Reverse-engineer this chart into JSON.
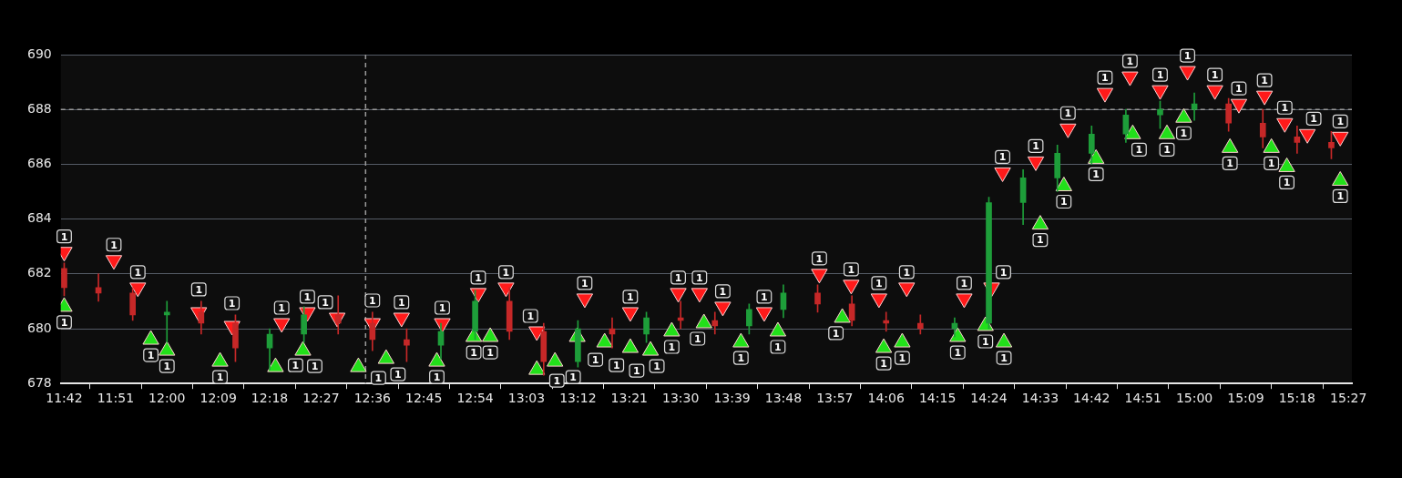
{
  "chart_data": {
    "type": "candlestick",
    "x": [
      11.7,
      11.8,
      11.9,
      12.0,
      12.1,
      12.2,
      12.3,
      12.4,
      12.5,
      12.6,
      12.7,
      12.8,
      12.9,
      13.0,
      13.1,
      13.2,
      13.3,
      13.4,
      13.5,
      13.6,
      13.7,
      13.8,
      13.9,
      14.0,
      14.1,
      14.2,
      14.3,
      14.4,
      14.5,
      14.6,
      14.7,
      14.8,
      14.9,
      15.0,
      15.1,
      15.2,
      15.3,
      15.4
    ],
    "ohlc": [
      [
        682.2,
        682.4,
        681.2,
        681.5
      ],
      [
        681.5,
        682,
        681,
        681.3
      ],
      [
        681.3,
        681.5,
        680.3,
        680.5
      ],
      [
        680.5,
        681,
        679.5,
        680.6
      ],
      [
        680.6,
        681,
        679.8,
        680.2
      ],
      [
        680.2,
        680.5,
        678.8,
        679.3
      ],
      [
        679.3,
        680,
        678.5,
        679.8
      ],
      [
        679.8,
        680.8,
        679.5,
        680.5
      ],
      [
        680.5,
        681.2,
        679.8,
        680.2
      ],
      [
        680.2,
        680.6,
        679.2,
        679.6
      ],
      [
        679.6,
        680,
        678.8,
        679.4
      ],
      [
        679.4,
        680.2,
        678.9,
        679.9
      ],
      [
        679.9,
        681.4,
        679.6,
        681
      ],
      [
        681,
        681.5,
        679.6,
        679.9
      ],
      [
        679.9,
        680.2,
        678.3,
        678.8
      ],
      [
        678.8,
        680.3,
        678.6,
        680
      ],
      [
        680,
        680.4,
        679.3,
        679.8
      ],
      [
        679.8,
        680.6,
        679.5,
        680.4
      ],
      [
        680.4,
        681,
        680,
        680.3
      ],
      [
        680.3,
        680.6,
        679.8,
        680.1
      ],
      [
        680.1,
        680.9,
        679.8,
        680.7
      ],
      [
        680.7,
        681.6,
        680.4,
        681.3
      ],
      [
        681.3,
        681.6,
        680.6,
        680.9
      ],
      [
        680.9,
        681.2,
        680.1,
        680.3
      ],
      [
        680.3,
        680.6,
        679.9,
        680.2
      ],
      [
        680.2,
        680.5,
        679.8,
        680
      ],
      [
        680,
        680.4,
        679.7,
        680.2
      ],
      [
        680.2,
        684.8,
        680,
        684.6
      ],
      [
        684.6,
        685.8,
        683.8,
        685.5
      ],
      [
        685.5,
        686.7,
        685,
        686.4
      ],
      [
        686.4,
        687.4,
        686,
        687.1
      ],
      [
        687.1,
        688,
        686.8,
        687.8
      ],
      [
        687.8,
        688.3,
        687.3,
        688
      ],
      [
        688,
        688.6,
        687.6,
        688.2
      ],
      [
        688.2,
        688.4,
        687.2,
        687.5
      ],
      [
        687.5,
        688,
        686.6,
        687
      ],
      [
        687,
        687.4,
        686.4,
        686.8
      ],
      [
        686.8,
        687.2,
        686.2,
        686.6
      ]
    ],
    "colors": [
      "#c62828",
      "#c62828",
      "#c62828",
      "#1e9e3a",
      "#c62828",
      "#c62828",
      "#1e9e3a",
      "#1e9e3a",
      "#c62828",
      "#c62828",
      "#c62828",
      "#1e9e3a",
      "#1e9e3a",
      "#c62828",
      "#c62828",
      "#1e9e3a",
      "#c62828",
      "#1e9e3a",
      "#c62828",
      "#c62828",
      "#1e9e3a",
      "#1e9e3a",
      "#c62828",
      "#c62828",
      "#c62828",
      "#c62828",
      "#1e9e3a",
      "#1e9e3a",
      "#1e9e3a",
      "#1e9e3a",
      "#1e9e3a",
      "#1e9e3a",
      "#1e9e3a",
      "#1e9e3a",
      "#c62828",
      "#c62828",
      "#c62828",
      "#c62828"
    ],
    "series": [
      {
        "type": "scatter",
        "color": "#ff1a1a",
        "marker": "triangle-down",
        "x": [
          11.7,
          11.845,
          11.915,
          12.093,
          12.19,
          12.335,
          12.41,
          12.497,
          12.6,
          12.685,
          12.804,
          12.909,
          12.99,
          13.08,
          13.22,
          13.353,
          13.493,
          13.555,
          13.623,
          13.744,
          13.905,
          13.998,
          14.079,
          14.16,
          14.328,
          14.408,
          14.44,
          14.537,
          14.631,
          14.739,
          14.812,
          14.9,
          14.98,
          15.06,
          15.13,
          15.205,
          15.264,
          15.33,
          15.426
        ],
        "values": [
          682.8,
          682.5,
          681.5,
          680.6,
          680.1,
          680.2,
          680.6,
          680.4,
          680.2,
          680.4,
          680.2,
          681.3,
          681.5,
          679.9,
          681.1,
          680.6,
          681.3,
          681.3,
          680.8,
          680.6,
          682,
          681.6,
          681.1,
          681.5,
          681.1,
          681.5,
          685.7,
          686.1,
          687.3,
          688.6,
          689.2,
          688.7,
          689.4,
          688.7,
          688.2,
          688.5,
          687.5,
          687.1,
          687
        ]
      },
      {
        "type": "scatter",
        "color": "#22e01a",
        "marker": "triangle",
        "x": [
          11.7,
          11.953,
          12.0,
          12.155,
          12.317,
          12.397,
          12.559,
          12.64,
          12.788,
          12.896,
          12.944,
          13.08,
          13.133,
          13.198,
          13.278,
          13.353,
          13.412,
          13.474,
          13.568,
          13.676,
          13.784,
          13.972,
          14.093,
          14.147,
          14.309,
          14.39,
          14.444,
          14.55,
          14.619,
          14.713,
          14.82,
          14.92,
          14.969,
          15.104,
          15.225,
          15.27,
          15.426
        ],
        "values": [
          680.8,
          679.6,
          679.2,
          678.8,
          678.6,
          679.2,
          678.6,
          678.9,
          678.8,
          679.7,
          679.7,
          678.5,
          678.8,
          679.7,
          679.5,
          679.3,
          679.2,
          679.9,
          680.2,
          679.5,
          679.9,
          680.4,
          679.3,
          679.5,
          679.7,
          680.1,
          679.5,
          683.8,
          685.2,
          686.2,
          687.1,
          687.1,
          687.7,
          686.6,
          686.6,
          685.9,
          685.4
        ]
      }
    ],
    "annotations": [
      {
        "text": "1",
        "x": 11.7,
        "y": 682.8
      },
      {
        "text": "1",
        "x": 11.845,
        "y": 682.5
      },
      {
        "text": "1",
        "x": 11.915,
        "y": 681.5
      },
      {
        "text": "1",
        "x": 12.093,
        "y": 680.6
      },
      {
        "text": "1",
        "x": 12.19,
        "y": 680.1
      },
      {
        "text": "1",
        "x": 12.335,
        "y": 680.2
      },
      {
        "text": "1",
        "x": 12.41,
        "y": 680.6
      },
      {
        "text": "1",
        "x": 12.497,
        "y": 680.4
      },
      {
        "text": "1",
        "x": 12.6,
        "y": 680.2
      },
      {
        "text": "1",
        "x": 12.685,
        "y": 680.4
      },
      {
        "text": "1",
        "x": 12.804,
        "y": 680.2
      },
      {
        "text": "1",
        "x": 12.909,
        "y": 681.3
      },
      {
        "text": "1",
        "x": 12.99,
        "y": 681.5
      },
      {
        "text": "1",
        "x": 13.08,
        "y": 679.9
      },
      {
        "text": "1",
        "x": 13.22,
        "y": 681.1
      },
      {
        "text": "1",
        "x": 13.353,
        "y": 680.6
      },
      {
        "text": "1",
        "x": 13.493,
        "y": 681.3
      },
      {
        "text": "1",
        "x": 13.555,
        "y": 681.3
      },
      {
        "text": "1",
        "x": 13.623,
        "y": 680.8
      },
      {
        "text": "1",
        "x": 13.744,
        "y": 680.6
      },
      {
        "text": "1",
        "x": 13.905,
        "y": 682
      },
      {
        "text": "1",
        "x": 13.998,
        "y": 681.6
      },
      {
        "text": "1",
        "x": 14.079,
        "y": 681.1
      },
      {
        "text": "1",
        "x": 14.16,
        "y": 681.5
      },
      {
        "text": "1",
        "x": 14.328,
        "y": 681.1
      },
      {
        "text": "1",
        "x": 14.408,
        "y": 681.5
      },
      {
        "text": "1",
        "x": 14.44,
        "y": 685.7
      },
      {
        "text": "1",
        "x": 14.537,
        "y": 686.1
      },
      {
        "text": "1",
        "x": 14.631,
        "y": 687.3
      },
      {
        "text": "1",
        "x": 14.739,
        "y": 688.6
      },
      {
        "text": "1",
        "x": 14.812,
        "y": 689.2
      },
      {
        "text": "1",
        "x": 14.9,
        "y": 688.7
      },
      {
        "text": "1",
        "x": 14.98,
        "y": 689.4
      },
      {
        "text": "1",
        "x": 15.06,
        "y": 688.7
      },
      {
        "text": "1",
        "x": 15.13,
        "y": 688.2
      },
      {
        "text": "1",
        "x": 15.205,
        "y": 688.5
      },
      {
        "text": "1",
        "x": 15.264,
        "y": 687.5
      },
      {
        "text": "1",
        "x": 15.33,
        "y": 687.1
      },
      {
        "text": "1",
        "x": 15.426,
        "y": 687
      },
      {
        "text": "1",
        "x": 11.7,
        "y": 680.8
      },
      {
        "text": "1",
        "x": 11.953,
        "y": 679.6
      },
      {
        "text": "1",
        "x": 12.0,
        "y": 679.2
      },
      {
        "text": "1",
        "x": 12.155,
        "y": 678.8
      },
      {
        "text": "1",
        "x": 12.317,
        "y": 678.6
      },
      {
        "text": "1",
        "x": 12.397,
        "y": 679.2
      },
      {
        "text": "1",
        "x": 12.559,
        "y": 678.6
      },
      {
        "text": "1",
        "x": 12.64,
        "y": 678.9
      },
      {
        "text": "1",
        "x": 12.788,
        "y": 678.8
      },
      {
        "text": "1",
        "x": 12.896,
        "y": 679.7
      },
      {
        "text": "1",
        "x": 12.944,
        "y": 679.7
      },
      {
        "text": "1",
        "x": 13.08,
        "y": 678.5
      },
      {
        "text": "1",
        "x": 13.133,
        "y": 678.8
      },
      {
        "text": "1",
        "x": 13.198,
        "y": 679.7
      },
      {
        "text": "1",
        "x": 13.278,
        "y": 679.5
      },
      {
        "text": "1",
        "x": 13.353,
        "y": 679.3
      },
      {
        "text": "1",
        "x": 13.412,
        "y": 679.2
      },
      {
        "text": "1",
        "x": 13.474,
        "y": 679.9
      },
      {
        "text": "1",
        "x": 13.568,
        "y": 680.2
      },
      {
        "text": "1",
        "x": 13.676,
        "y": 679.5
      },
      {
        "text": "1",
        "x": 13.784,
        "y": 679.9
      },
      {
        "text": "1",
        "x": 13.972,
        "y": 680.4
      },
      {
        "text": "1",
        "x": 14.093,
        "y": 679.3
      },
      {
        "text": "1",
        "x": 14.147,
        "y": 679.5
      },
      {
        "text": "1",
        "x": 14.309,
        "y": 679.7
      },
      {
        "text": "1",
        "x": 14.39,
        "y": 680.1
      },
      {
        "text": "1",
        "x": 14.444,
        "y": 679.5
      },
      {
        "text": "1",
        "x": 14.55,
        "y": 683.8
      },
      {
        "text": "1",
        "x": 14.619,
        "y": 685.2
      },
      {
        "text": "1",
        "x": 14.713,
        "y": 686.2
      },
      {
        "text": "1",
        "x": 14.82,
        "y": 687.1
      },
      {
        "text": "1",
        "x": 14.92,
        "y": 687.1
      },
      {
        "text": "1",
        "x": 14.969,
        "y": 687.7
      },
      {
        "text": "1",
        "x": 15.104,
        "y": 686.6
      },
      {
        "text": "1",
        "x": 15.225,
        "y": 686.6
      },
      {
        "text": "1",
        "x": 15.27,
        "y": 685.9
      },
      {
        "text": "1",
        "x": 15.426,
        "y": 685.4
      }
    ],
    "xlim": [
      11.69,
      15.46
    ],
    "xticks": [
      {
        "value": 11.7,
        "label": "11:42"
      },
      {
        "value": 11.85,
        "label": "11:51"
      },
      {
        "value": 12.0,
        "label": "12:00"
      },
      {
        "value": 12.15,
        "label": "12:09"
      },
      {
        "value": 12.3,
        "label": "12:18"
      },
      {
        "value": 12.45,
        "label": "12:27"
      },
      {
        "value": 12.6,
        "label": "12:36"
      },
      {
        "value": 12.75,
        "label": "12:45"
      },
      {
        "value": 12.9,
        "label": "12:54"
      },
      {
        "value": 13.05,
        "label": "13:03"
      },
      {
        "value": 13.2,
        "label": "13:12"
      },
      {
        "value": 13.35,
        "label": "13:21"
      },
      {
        "value": 13.5,
        "label": "13:30"
      },
      {
        "value": 13.65,
        "label": "13:39"
      },
      {
        "value": 13.8,
        "label": "13:48"
      },
      {
        "value": 13.95,
        "label": "13:57"
      },
      {
        "value": 14.1,
        "label": "14:06"
      },
      {
        "value": 14.25,
        "label": "14:15"
      },
      {
        "value": 14.4,
        "label": "14:24"
      },
      {
        "value": 14.55,
        "label": "14:33"
      },
      {
        "value": 14.7,
        "label": "14:42"
      },
      {
        "value": 14.85,
        "label": "14:51"
      },
      {
        "value": 15.0,
        "label": "15:00"
      },
      {
        "value": 15.15,
        "label": "15:09"
      },
      {
        "value": 15.3,
        "label": "15:18"
      },
      {
        "value": 15.45,
        "label": "15:27"
      }
    ],
    "ylim": [
      678,
      690
    ],
    "yticks": [
      678,
      680,
      682,
      684,
      686,
      688,
      690
    ],
    "ref_lines": [
      {
        "axis": "y",
        "value": 688,
        "color": "#9a9a9a",
        "line_style": "dashed"
      },
      {
        "axis": "x",
        "value": 12.58,
        "color": "#9a9a9a",
        "line_style": "dashed"
      }
    ],
    "grid": "y",
    "legend": false
  }
}
